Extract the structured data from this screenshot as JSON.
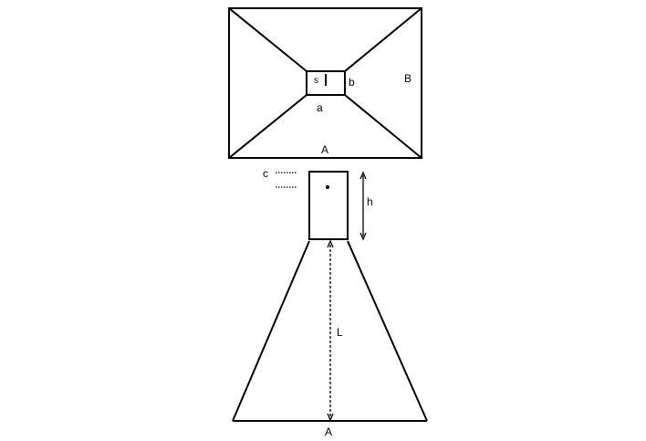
{
  "top_view": {
    "label_s": "s",
    "label_b": "b",
    "label_a": "a",
    "label_B": "B",
    "label_A": "A"
  },
  "side_view": {
    "label_c": "c",
    "label_h": "h",
    "label_L": "L",
    "label_A": "A"
  }
}
